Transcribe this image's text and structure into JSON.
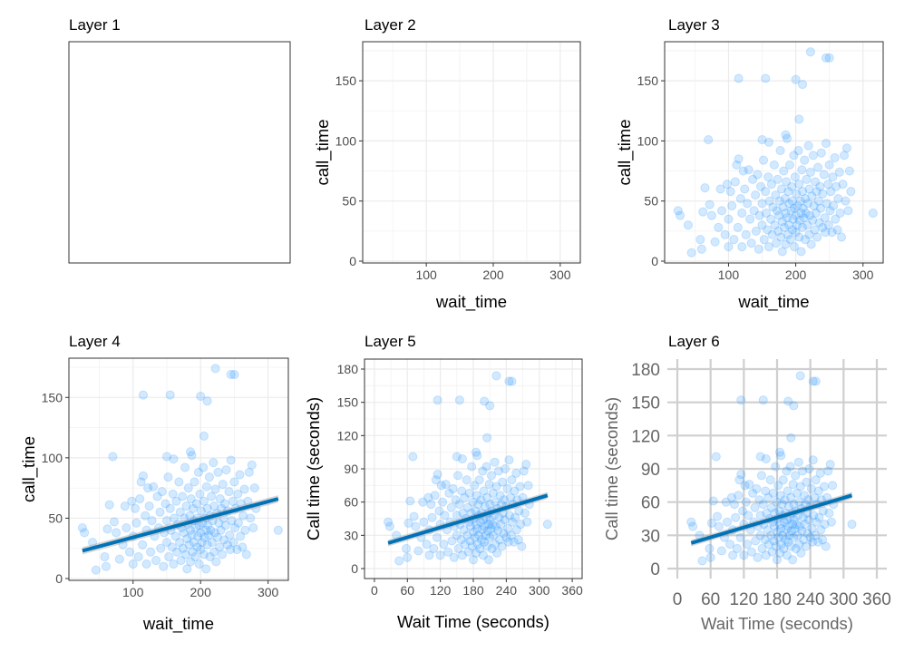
{
  "chart_data": [
    {
      "type": "blank",
      "title": "Layer 1"
    },
    {
      "type": "scatter",
      "title": "Layer 2",
      "xlabel": "wait_time",
      "ylabel": "call_time",
      "xticks": [
        100,
        200,
        300
      ],
      "yticks": [
        0,
        50,
        100,
        150
      ],
      "xlim": [
        5,
        330
      ],
      "ylim": [
        -1.5,
        182.5
      ],
      "theme": "bw",
      "grid": true,
      "show_points": false,
      "show_line": false
    },
    {
      "type": "scatter",
      "title": "Layer 3",
      "xlabel": "wait_time",
      "ylabel": "call_time",
      "xticks": [
        100,
        200,
        300
      ],
      "yticks": [
        0,
        50,
        100,
        150
      ],
      "xlim": [
        5,
        330
      ],
      "ylim": [
        -1.5,
        182.5
      ],
      "theme": "bw",
      "grid": true,
      "show_points": true,
      "show_line": false
    },
    {
      "type": "scatter",
      "title": "Layer 4",
      "xlabel": "wait_time",
      "ylabel": "call_time",
      "xticks": [
        100,
        200,
        300
      ],
      "yticks": [
        0,
        50,
        100,
        150
      ],
      "xlim": [
        5,
        330
      ],
      "ylim": [
        -1.5,
        182.5
      ],
      "theme": "bw",
      "grid": true,
      "show_points": true,
      "show_line": true
    },
    {
      "type": "scatter",
      "title": "Layer 5",
      "xlabel": "Wait Time (seconds)",
      "ylabel": "Call time (seconds)",
      "xticks": [
        0,
        60,
        120,
        180,
        240,
        300,
        360
      ],
      "yticks": [
        0,
        30,
        60,
        90,
        120,
        150,
        180
      ],
      "xlim": [
        -18,
        378
      ],
      "ylim": [
        -9,
        189
      ],
      "theme": "bw",
      "grid": true,
      "show_points": true,
      "show_line": true
    },
    {
      "type": "scatter",
      "title": "Layer 6",
      "xlabel": "Wait Time (seconds)",
      "ylabel": "Call time (seconds)",
      "xticks": [
        0,
        60,
        120,
        180,
        240,
        300,
        360
      ],
      "yticks": [
        0,
        30,
        60,
        90,
        120,
        150,
        180
      ],
      "xlim": [
        -18,
        378
      ],
      "ylim": [
        -9,
        189
      ],
      "theme": "minimal",
      "grid": true,
      "show_points": true,
      "show_line": true
    }
  ],
  "points": [
    [
      115,
      152
    ],
    [
      155,
      152
    ],
    [
      200,
      151
    ],
    [
      210,
      147
    ],
    [
      205,
      118
    ],
    [
      222,
      174
    ],
    [
      245,
      169
    ],
    [
      250,
      169
    ],
    [
      70,
      101
    ],
    [
      150,
      101
    ],
    [
      160,
      99
    ],
    [
      185,
      105
    ],
    [
      187,
      102
    ],
    [
      315,
      40
    ],
    [
      25,
      42
    ],
    [
      28,
      38
    ],
    [
      45,
      7
    ],
    [
      60,
      10
    ],
    [
      58,
      18
    ],
    [
      40,
      30
    ],
    [
      62,
      41
    ],
    [
      65,
      61
    ],
    [
      72,
      47
    ],
    [
      75,
      38
    ],
    [
      80,
      16
    ],
    [
      85,
      28
    ],
    [
      88,
      60
    ],
    [
      90,
      42
    ],
    [
      95,
      22
    ],
    [
      98,
      64
    ],
    [
      100,
      12
    ],
    [
      100,
      35
    ],
    [
      103,
      58
    ],
    [
      105,
      46
    ],
    [
      108,
      18
    ],
    [
      110,
      66
    ],
    [
      112,
      80
    ],
    [
      114,
      28
    ],
    [
      115,
      85
    ],
    [
      118,
      52
    ],
    [
      120,
      12
    ],
    [
      120,
      40
    ],
    [
      122,
      75
    ],
    [
      124,
      60
    ],
    [
      126,
      22
    ],
    [
      128,
      48
    ],
    [
      130,
      76
    ],
    [
      132,
      35
    ],
    [
      134,
      15
    ],
    [
      136,
      68
    ],
    [
      138,
      42
    ],
    [
      140,
      55
    ],
    [
      141,
      25
    ],
    [
      143,
      72
    ],
    [
      145,
      10
    ],
    [
      146,
      38
    ],
    [
      148,
      62
    ],
    [
      150,
      30
    ],
    [
      150,
      48
    ],
    [
      152,
      84
    ],
    [
      153,
      18
    ],
    [
      155,
      58
    ],
    [
      156,
      40
    ],
    [
      158,
      26
    ],
    [
      159,
      70
    ],
    [
      160,
      12
    ],
    [
      161,
      50
    ],
    [
      163,
      35
    ],
    [
      164,
      64
    ],
    [
      165,
      22
    ],
    [
      166,
      45
    ],
    [
      168,
      80
    ],
    [
      169,
      30
    ],
    [
      170,
      55
    ],
    [
      171,
      15
    ],
    [
      172,
      42
    ],
    [
      173,
      68
    ],
    [
      174,
      25
    ],
    [
      175,
      38
    ],
    [
      176,
      50
    ],
    [
      177,
      92
    ],
    [
      178,
      20
    ],
    [
      179,
      60
    ],
    [
      180,
      8
    ],
    [
      180,
      33
    ],
    [
      181,
      45
    ],
    [
      182,
      75
    ],
    [
      183,
      28
    ],
    [
      184,
      52
    ],
    [
      185,
      14
    ],
    [
      185,
      40
    ],
    [
      186,
      66
    ],
    [
      187,
      36
    ],
    [
      188,
      22
    ],
    [
      189,
      58
    ],
    [
      190,
      30
    ],
    [
      190,
      48
    ],
    [
      191,
      80
    ],
    [
      192,
      18
    ],
    [
      193,
      42
    ],
    [
      194,
      62
    ],
    [
      195,
      26
    ],
    [
      195,
      50
    ],
    [
      196,
      35
    ],
    [
      197,
      88
    ],
    [
      198,
      12
    ],
    [
      198,
      44
    ],
    [
      199,
      70
    ],
    [
      200,
      24
    ],
    [
      200,
      38
    ],
    [
      201,
      56
    ],
    [
      202,
      30
    ],
    [
      203,
      46
    ],
    [
      204,
      92
    ],
    [
      205,
      20
    ],
    [
      205,
      64
    ],
    [
      206,
      34
    ],
    [
      207,
      50
    ],
    [
      208,
      8
    ],
    [
      208,
      40
    ],
    [
      209,
      76
    ],
    [
      210,
      28
    ],
    [
      210,
      58
    ],
    [
      211,
      44
    ],
    [
      212,
      36
    ],
    [
      213,
      84
    ],
    [
      214,
      18
    ],
    [
      214,
      52
    ],
    [
      215,
      40
    ],
    [
      216,
      68
    ],
    [
      217,
      30
    ],
    [
      218,
      48
    ],
    [
      219,
      96
    ],
    [
      220,
      22
    ],
    [
      220,
      60
    ],
    [
      221,
      38
    ],
    [
      222,
      74
    ],
    [
      223,
      14
    ],
    [
      224,
      54
    ],
    [
      225,
      34
    ],
    [
      226,
      88
    ],
    [
      227,
      46
    ],
    [
      228,
      26
    ],
    [
      229,
      66
    ],
    [
      230,
      40
    ],
    [
      231,
      58
    ],
    [
      232,
      20
    ],
    [
      233,
      78
    ],
    [
      234,
      50
    ],
    [
      235,
      32
    ],
    [
      236,
      62
    ],
    [
      237,
      44
    ],
    [
      238,
      90
    ],
    [
      240,
      28
    ],
    [
      240,
      56
    ],
    [
      242,
      72
    ],
    [
      243,
      36
    ],
    [
      244,
      24
    ],
    [
      245,
      98
    ],
    [
      246,
      48
    ],
    [
      248,
      64
    ],
    [
      249,
      30
    ],
    [
      250,
      80
    ],
    [
      251,
      42
    ],
    [
      252,
      58
    ],
    [
      254,
      24
    ],
    [
      255,
      70
    ],
    [
      256,
      46
    ],
    [
      258,
      86
    ],
    [
      259,
      35
    ],
    [
      260,
      62
    ],
    [
      262,
      26
    ],
    [
      263,
      52
    ],
    [
      265,
      74
    ],
    [
      266,
      40
    ],
    [
      268,
      20
    ],
    [
      270,
      64
    ],
    [
      272,
      88
    ],
    [
      274,
      50
    ],
    [
      276,
      94
    ],
    [
      278,
      42
    ],
    [
      280,
      75
    ],
    [
      282,
      58
    ]
  ],
  "fit": {
    "x": [
      25,
      315
    ],
    "y": [
      23,
      66
    ],
    "se": 3
  }
}
